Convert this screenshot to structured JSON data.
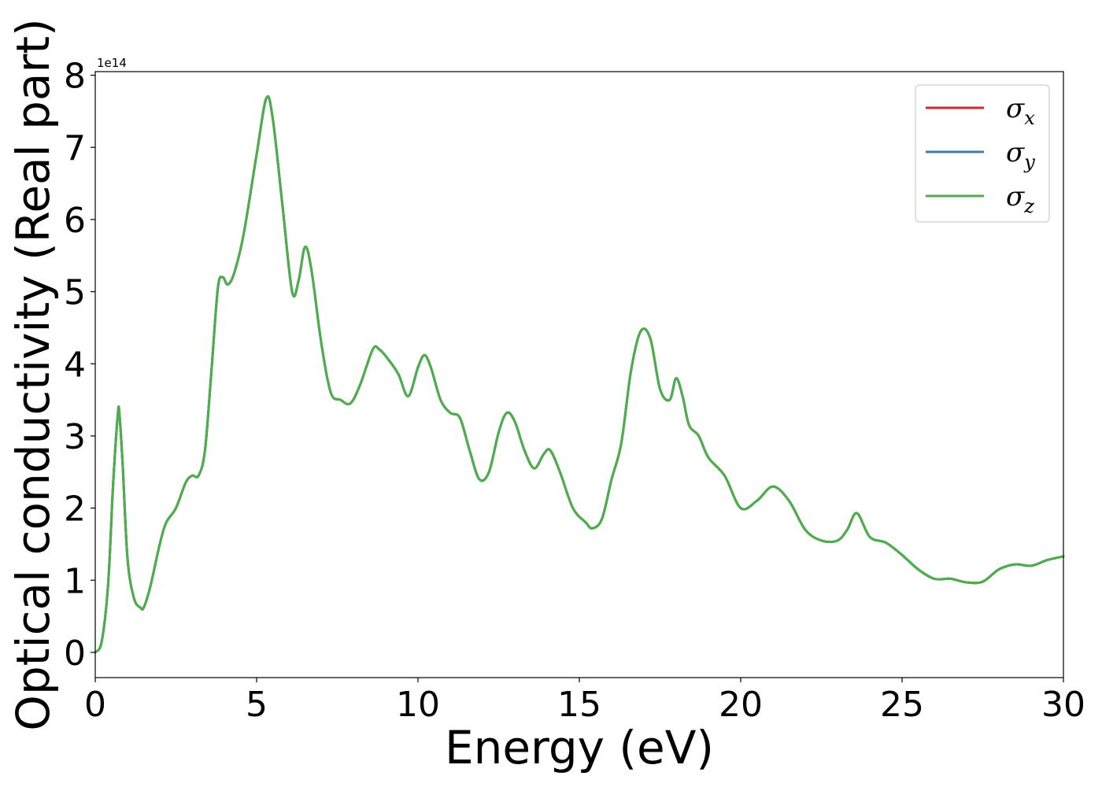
{
  "chart_data": {
    "type": "line",
    "title": "",
    "xlabel": "Energy (eV)",
    "ylabel": "Optical conductivity (Real part)",
    "y_offset_label": "1e14",
    "y_scale_note": "values in units of 1e14",
    "xlim": [
      0,
      30
    ],
    "ylim": [
      -0.35,
      8.05
    ],
    "xticks": [
      0,
      5,
      10,
      15,
      20,
      25,
      30
    ],
    "yticks": [
      0,
      1,
      2,
      3,
      4,
      5,
      6,
      7,
      8
    ],
    "grid": false,
    "legend_position": "top-right",
    "series": [
      {
        "name": "σx",
        "symbol": "σ",
        "subscript": "x",
        "color": "#d62728",
        "x": [
          0,
          0.2,
          0.4,
          0.55,
          0.7,
          0.75,
          0.85,
          1.0,
          1.2,
          1.4,
          1.5,
          1.7,
          2.0,
          2.2,
          2.5,
          2.8,
          3.0,
          3.2,
          3.4,
          3.6,
          3.8,
          3.95,
          4.1,
          4.3,
          4.6,
          5.0,
          5.3,
          5.5,
          5.8,
          6.1,
          6.3,
          6.5,
          6.7,
          7.0,
          7.3,
          7.6,
          7.9,
          8.2,
          8.6,
          8.8,
          9.1,
          9.4,
          9.7,
          10.0,
          10.2,
          10.4,
          10.7,
          11.0,
          11.3,
          11.6,
          11.9,
          12.2,
          12.5,
          12.75,
          13.0,
          13.3,
          13.6,
          13.9,
          14.1,
          14.4,
          14.8,
          15.2,
          15.4,
          15.7,
          16.0,
          16.3,
          16.6,
          16.9,
          17.2,
          17.5,
          17.8,
          18.0,
          18.2,
          18.4,
          18.7,
          19.0,
          19.5,
          20.0,
          20.5,
          21.0,
          21.5,
          22.0,
          22.5,
          23.0,
          23.3,
          23.6,
          24.0,
          24.5,
          25.0,
          25.5,
          26.0,
          26.5,
          27.0,
          27.5,
          28.0,
          28.5,
          29.0,
          29.5,
          30.0
        ],
        "y": [
          0,
          0.15,
          0.95,
          2.3,
          3.3,
          3.3,
          2.6,
          1.3,
          0.75,
          0.62,
          0.62,
          0.9,
          1.5,
          1.8,
          2.0,
          2.35,
          2.45,
          2.45,
          2.8,
          3.9,
          5.05,
          5.2,
          5.1,
          5.25,
          5.8,
          6.9,
          7.68,
          7.4,
          6.2,
          5.0,
          5.15,
          5.62,
          5.3,
          4.3,
          3.6,
          3.5,
          3.45,
          3.7,
          4.2,
          4.2,
          4.05,
          3.85,
          3.55,
          3.95,
          4.12,
          3.95,
          3.5,
          3.32,
          3.25,
          2.8,
          2.4,
          2.5,
          3.05,
          3.32,
          3.2,
          2.8,
          2.55,
          2.75,
          2.8,
          2.5,
          2.0,
          1.8,
          1.72,
          1.85,
          2.4,
          2.9,
          3.9,
          4.45,
          4.35,
          3.65,
          3.5,
          3.8,
          3.55,
          3.15,
          3.0,
          2.7,
          2.45,
          2.0,
          2.1,
          2.3,
          2.1,
          1.7,
          1.55,
          1.55,
          1.7,
          1.93,
          1.6,
          1.52,
          1.35,
          1.15,
          1.02,
          1.02,
          0.97,
          0.98,
          1.15,
          1.22,
          1.2,
          1.28,
          1.33
        ]
      },
      {
        "name": "σy",
        "symbol": "σ",
        "subscript": "y",
        "color": "#377eb8",
        "x": [
          0,
          0.2,
          0.4,
          0.55,
          0.7,
          0.75,
          0.85,
          1.0,
          1.2,
          1.4,
          1.5,
          1.7,
          2.0,
          2.2,
          2.5,
          2.8,
          3.0,
          3.2,
          3.4,
          3.6,
          3.8,
          3.95,
          4.1,
          4.3,
          4.6,
          5.0,
          5.3,
          5.5,
          5.8,
          6.1,
          6.3,
          6.5,
          6.7,
          7.0,
          7.3,
          7.6,
          7.9,
          8.2,
          8.6,
          8.8,
          9.1,
          9.4,
          9.7,
          10.0,
          10.2,
          10.4,
          10.7,
          11.0,
          11.3,
          11.6,
          11.9,
          12.2,
          12.5,
          12.75,
          13.0,
          13.3,
          13.6,
          13.9,
          14.1,
          14.4,
          14.8,
          15.2,
          15.4,
          15.7,
          16.0,
          16.3,
          16.6,
          16.9,
          17.2,
          17.5,
          17.8,
          18.0,
          18.2,
          18.4,
          18.7,
          19.0,
          19.5,
          20.0,
          20.5,
          21.0,
          21.5,
          22.0,
          22.5,
          23.0,
          23.3,
          23.6,
          24.0,
          24.5,
          25.0,
          25.5,
          26.0,
          26.5,
          27.0,
          27.5,
          28.0,
          28.5,
          29.0,
          29.5,
          30.0
        ],
        "y": [
          0,
          0.15,
          0.95,
          2.3,
          3.3,
          3.3,
          2.6,
          1.3,
          0.75,
          0.62,
          0.62,
          0.9,
          1.5,
          1.8,
          2.0,
          2.35,
          2.45,
          2.45,
          2.8,
          3.9,
          5.05,
          5.2,
          5.1,
          5.25,
          5.8,
          6.9,
          7.68,
          7.4,
          6.2,
          5.0,
          5.15,
          5.62,
          5.3,
          4.3,
          3.6,
          3.5,
          3.45,
          3.7,
          4.2,
          4.2,
          4.05,
          3.85,
          3.55,
          3.95,
          4.12,
          3.95,
          3.5,
          3.32,
          3.25,
          2.8,
          2.4,
          2.5,
          3.05,
          3.32,
          3.2,
          2.8,
          2.55,
          2.75,
          2.8,
          2.5,
          2.0,
          1.8,
          1.72,
          1.85,
          2.4,
          2.9,
          3.9,
          4.45,
          4.35,
          3.65,
          3.5,
          3.8,
          3.55,
          3.15,
          3.0,
          2.7,
          2.45,
          2.0,
          2.1,
          2.3,
          2.1,
          1.7,
          1.55,
          1.55,
          1.7,
          1.93,
          1.6,
          1.52,
          1.35,
          1.15,
          1.02,
          1.02,
          0.97,
          0.98,
          1.15,
          1.22,
          1.2,
          1.28,
          1.33
        ]
      },
      {
        "name": "σz",
        "symbol": "σ",
        "subscript": "z",
        "color": "#4daf4a",
        "x": [
          0,
          0.2,
          0.4,
          0.55,
          0.7,
          0.75,
          0.85,
          1.0,
          1.2,
          1.4,
          1.5,
          1.7,
          2.0,
          2.2,
          2.5,
          2.8,
          3.0,
          3.2,
          3.4,
          3.6,
          3.8,
          3.95,
          4.1,
          4.3,
          4.6,
          5.0,
          5.3,
          5.5,
          5.8,
          6.1,
          6.3,
          6.5,
          6.7,
          7.0,
          7.3,
          7.6,
          7.9,
          8.2,
          8.6,
          8.8,
          9.1,
          9.4,
          9.7,
          10.0,
          10.2,
          10.4,
          10.7,
          11.0,
          11.3,
          11.6,
          11.9,
          12.2,
          12.5,
          12.75,
          13.0,
          13.3,
          13.6,
          13.9,
          14.1,
          14.4,
          14.8,
          15.2,
          15.4,
          15.7,
          16.0,
          16.3,
          16.6,
          16.9,
          17.2,
          17.5,
          17.8,
          18.0,
          18.2,
          18.4,
          18.7,
          19.0,
          19.5,
          20.0,
          20.5,
          21.0,
          21.5,
          22.0,
          22.5,
          23.0,
          23.3,
          23.6,
          24.0,
          24.5,
          25.0,
          25.5,
          26.0,
          26.5,
          27.0,
          27.5,
          28.0,
          28.5,
          29.0,
          29.5,
          30.0
        ],
        "y": [
          0,
          0.15,
          0.95,
          2.3,
          3.3,
          3.3,
          2.6,
          1.3,
          0.75,
          0.62,
          0.62,
          0.9,
          1.5,
          1.8,
          2.0,
          2.35,
          2.45,
          2.45,
          2.8,
          3.9,
          5.05,
          5.2,
          5.1,
          5.25,
          5.8,
          6.9,
          7.68,
          7.4,
          6.2,
          5.0,
          5.15,
          5.62,
          5.3,
          4.3,
          3.6,
          3.5,
          3.45,
          3.7,
          4.2,
          4.2,
          4.05,
          3.85,
          3.55,
          3.95,
          4.12,
          3.95,
          3.5,
          3.32,
          3.25,
          2.8,
          2.4,
          2.5,
          3.05,
          3.32,
          3.2,
          2.8,
          2.55,
          2.75,
          2.8,
          2.5,
          2.0,
          1.8,
          1.72,
          1.85,
          2.4,
          2.9,
          3.9,
          4.45,
          4.35,
          3.65,
          3.5,
          3.8,
          3.55,
          3.15,
          3.0,
          2.7,
          2.45,
          2.0,
          2.1,
          2.3,
          2.1,
          1.7,
          1.55,
          1.55,
          1.7,
          1.93,
          1.6,
          1.52,
          1.35,
          1.15,
          1.02,
          1.02,
          0.97,
          0.98,
          1.15,
          1.22,
          1.2,
          1.28,
          1.33
        ]
      }
    ]
  }
}
